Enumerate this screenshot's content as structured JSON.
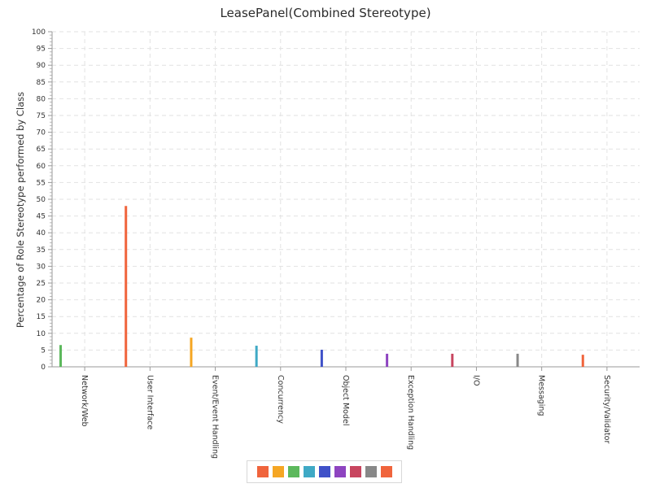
{
  "chart_data": {
    "type": "bar",
    "title": "LeasePanel(Combined Stereotype)",
    "xlabel": "",
    "ylabel": "Percentage of Role Stereotype performed by Class",
    "ylim": [
      0,
      100
    ],
    "yticks": [
      0,
      5,
      10,
      15,
      20,
      25,
      30,
      35,
      40,
      45,
      50,
      55,
      60,
      65,
      70,
      75,
      80,
      85,
      90,
      95,
      100
    ],
    "grid": true,
    "legend": "bottom",
    "categories": [
      "Network/Web",
      "User Interface",
      "Event/Event Handling",
      "Concurrency",
      "Object Model",
      "Exception Handling",
      "I/O",
      "Messaging",
      "Security/Validator"
    ],
    "values": [
      6.5,
      48,
      8.7,
      6.3,
      5.1,
      3.9,
      3.9,
      3.9,
      3.6
    ],
    "colors": [
      "#5cb85c",
      "#f0643c",
      "#f5a623",
      "#3fa9c5",
      "#3f51c8",
      "#8e44c0",
      "#c8455f",
      "#888888",
      "#f0643c"
    ],
    "legend_colors": [
      "#f0643c",
      "#f5a623",
      "#5cb85c",
      "#3fa9c5",
      "#3f51c8",
      "#8e44c0",
      "#c8455f",
      "#888888",
      "#f0643c"
    ]
  }
}
